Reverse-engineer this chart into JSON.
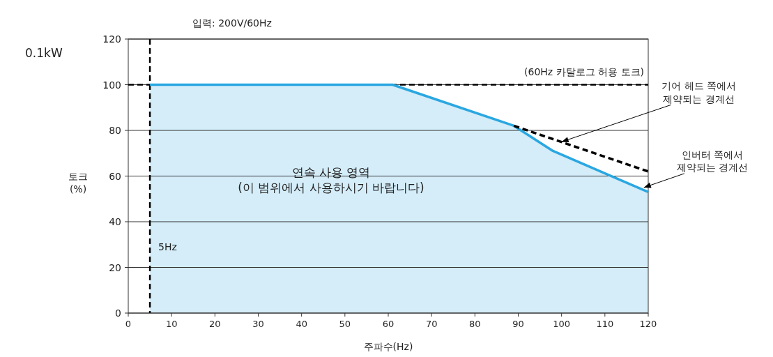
{
  "chart_data": {
    "type": "area",
    "title": "0.1kW",
    "subtitle": "입력: 200V/60Hz",
    "xlabel": "주파수(Hz)",
    "ylabel": "토크 (%)",
    "xlim": [
      0,
      120
    ],
    "xticks": [
      0,
      10,
      20,
      30,
      40,
      50,
      60,
      70,
      80,
      90,
      100,
      110,
      120
    ],
    "ylim": [
      0,
      120
    ],
    "yticks": [
      0,
      20,
      40,
      60,
      80,
      100,
      120
    ],
    "grid": "y",
    "series": [
      {
        "color": "#2aa7e1",
        "x": [
          5,
          61,
          89,
          98,
          120
        ],
        "values": [
          100,
          100,
          82,
          71,
          53
        ]
      },
      {
        "type": "line",
        "color": "#000000",
        "line_style": "dashed",
        "x": [
          89,
          120
        ],
        "values": [
          82,
          62
        ]
      }
    ],
    "ref_lines": [
      {
        "axis": "y",
        "value": 100,
        "label": "(60Hz 카탈로그 허용 토크)",
        "color": "#000000",
        "line_style": "dashed"
      },
      {
        "axis": "x",
        "value": 5,
        "label": "5Hz",
        "color": "#000000",
        "line_style": "dashed"
      }
    ],
    "annotations": [
      "연속 사용 영역\n(이 범위에서 사용하시기 바랍니다)",
      {
        "text": "기어 헤드 쪽에서\n제약되는 경계선",
        "x": 100,
        "y": 75
      },
      {
        "text": "인버터 쪽에서\n제약되는 경계선",
        "x": 119,
        "y": 55
      }
    ]
  }
}
